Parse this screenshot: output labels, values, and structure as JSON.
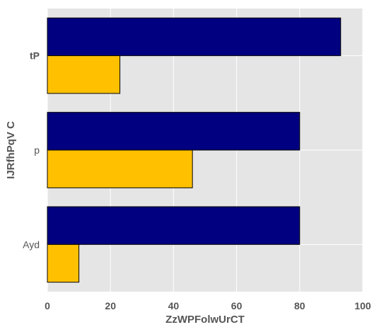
{
  "chart_data": {
    "type": "bar",
    "orientation": "horizontal",
    "categories": [
      "tP",
      "p",
      "Ayd"
    ],
    "series": [
      {
        "color": "#000080",
        "values": [
          93,
          80,
          80
        ]
      },
      {
        "color": "#ffc000",
        "values": [
          23,
          46,
          10
        ]
      }
    ],
    "xlabel": "ZzWPFolwUrCT",
    "ylabel": "IJRfhPqV C",
    "xlim": [
      0,
      100
    ],
    "xticks": [
      "0",
      "20",
      "40",
      "60",
      "80",
      "100"
    ],
    "grid": true,
    "legend": "none"
  }
}
